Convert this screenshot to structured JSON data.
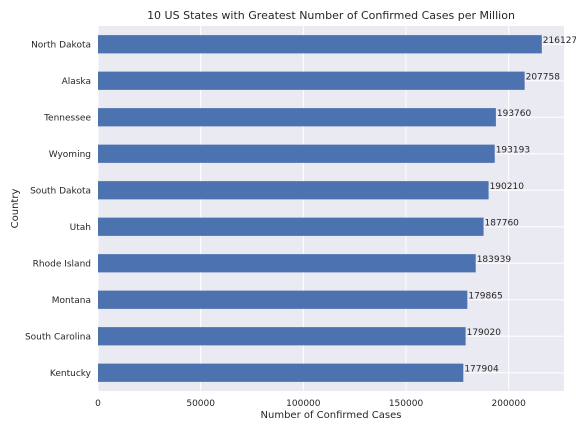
{
  "chart_data": {
    "type": "bar",
    "orientation": "horizontal",
    "title": "10 US States with Greatest Number of Confirmed Cases per Million",
    "xlabel": "Number of Confirmed Cases",
    "ylabel": "Country",
    "categories": [
      "North Dakota",
      "Alaska",
      "Tennessee",
      "Wyoming",
      "South Dakota",
      "Utah",
      "Rhode Island",
      "Montana",
      "South Carolina",
      "Kentucky"
    ],
    "values": [
      216127,
      207758,
      193760,
      193193,
      190210,
      187760,
      183939,
      179865,
      179020,
      177904
    ],
    "value_labels": [
      "216127",
      "207758",
      "193760",
      "193193",
      "190210",
      "187760",
      "183939",
      "179865",
      "179020",
      "177904"
    ],
    "xticks": [
      0,
      50000,
      100000,
      150000,
      200000
    ],
    "xtick_labels": [
      "0",
      "50000",
      "100000",
      "150000",
      "200000"
    ],
    "xlim": [
      0,
      226933
    ],
    "grid": true,
    "legend": "none",
    "bar_color": "#4c72b0",
    "background_color": "#eaeaf2",
    "grid_color": "#ffffff"
  }
}
